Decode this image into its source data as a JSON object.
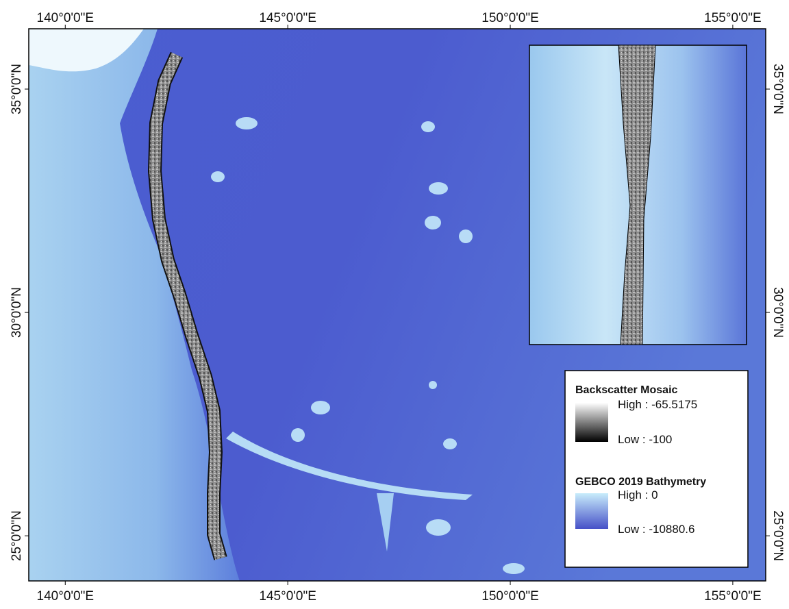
{
  "map": {
    "xlim": [
      139.18,
      155.74
    ],
    "ylim": [
      23.99,
      36.35
    ],
    "xticks": [
      {
        "value": 140,
        "label": "140°0'0\"E"
      },
      {
        "value": 145,
        "label": "145°0'0\"E"
      },
      {
        "value": 150,
        "label": "150°0'0\"E"
      },
      {
        "value": 155,
        "label": "155°0'0\"E"
      }
    ],
    "yticks": [
      {
        "value": 25,
        "label": "25°0'0\"N"
      },
      {
        "value": 30,
        "label": "30°0'0\"N"
      },
      {
        "value": 35,
        "label": "35°0'0\"N"
      }
    ]
  },
  "legend": {
    "items": [
      {
        "title": "Backscatter Mosaic",
        "high": "High : -65.5175",
        "low": "Low : -100"
      },
      {
        "title": "GEBCO 2019 Bathymetry",
        "high": "High : 0",
        "low": "Low : -10880.6"
      }
    ]
  }
}
